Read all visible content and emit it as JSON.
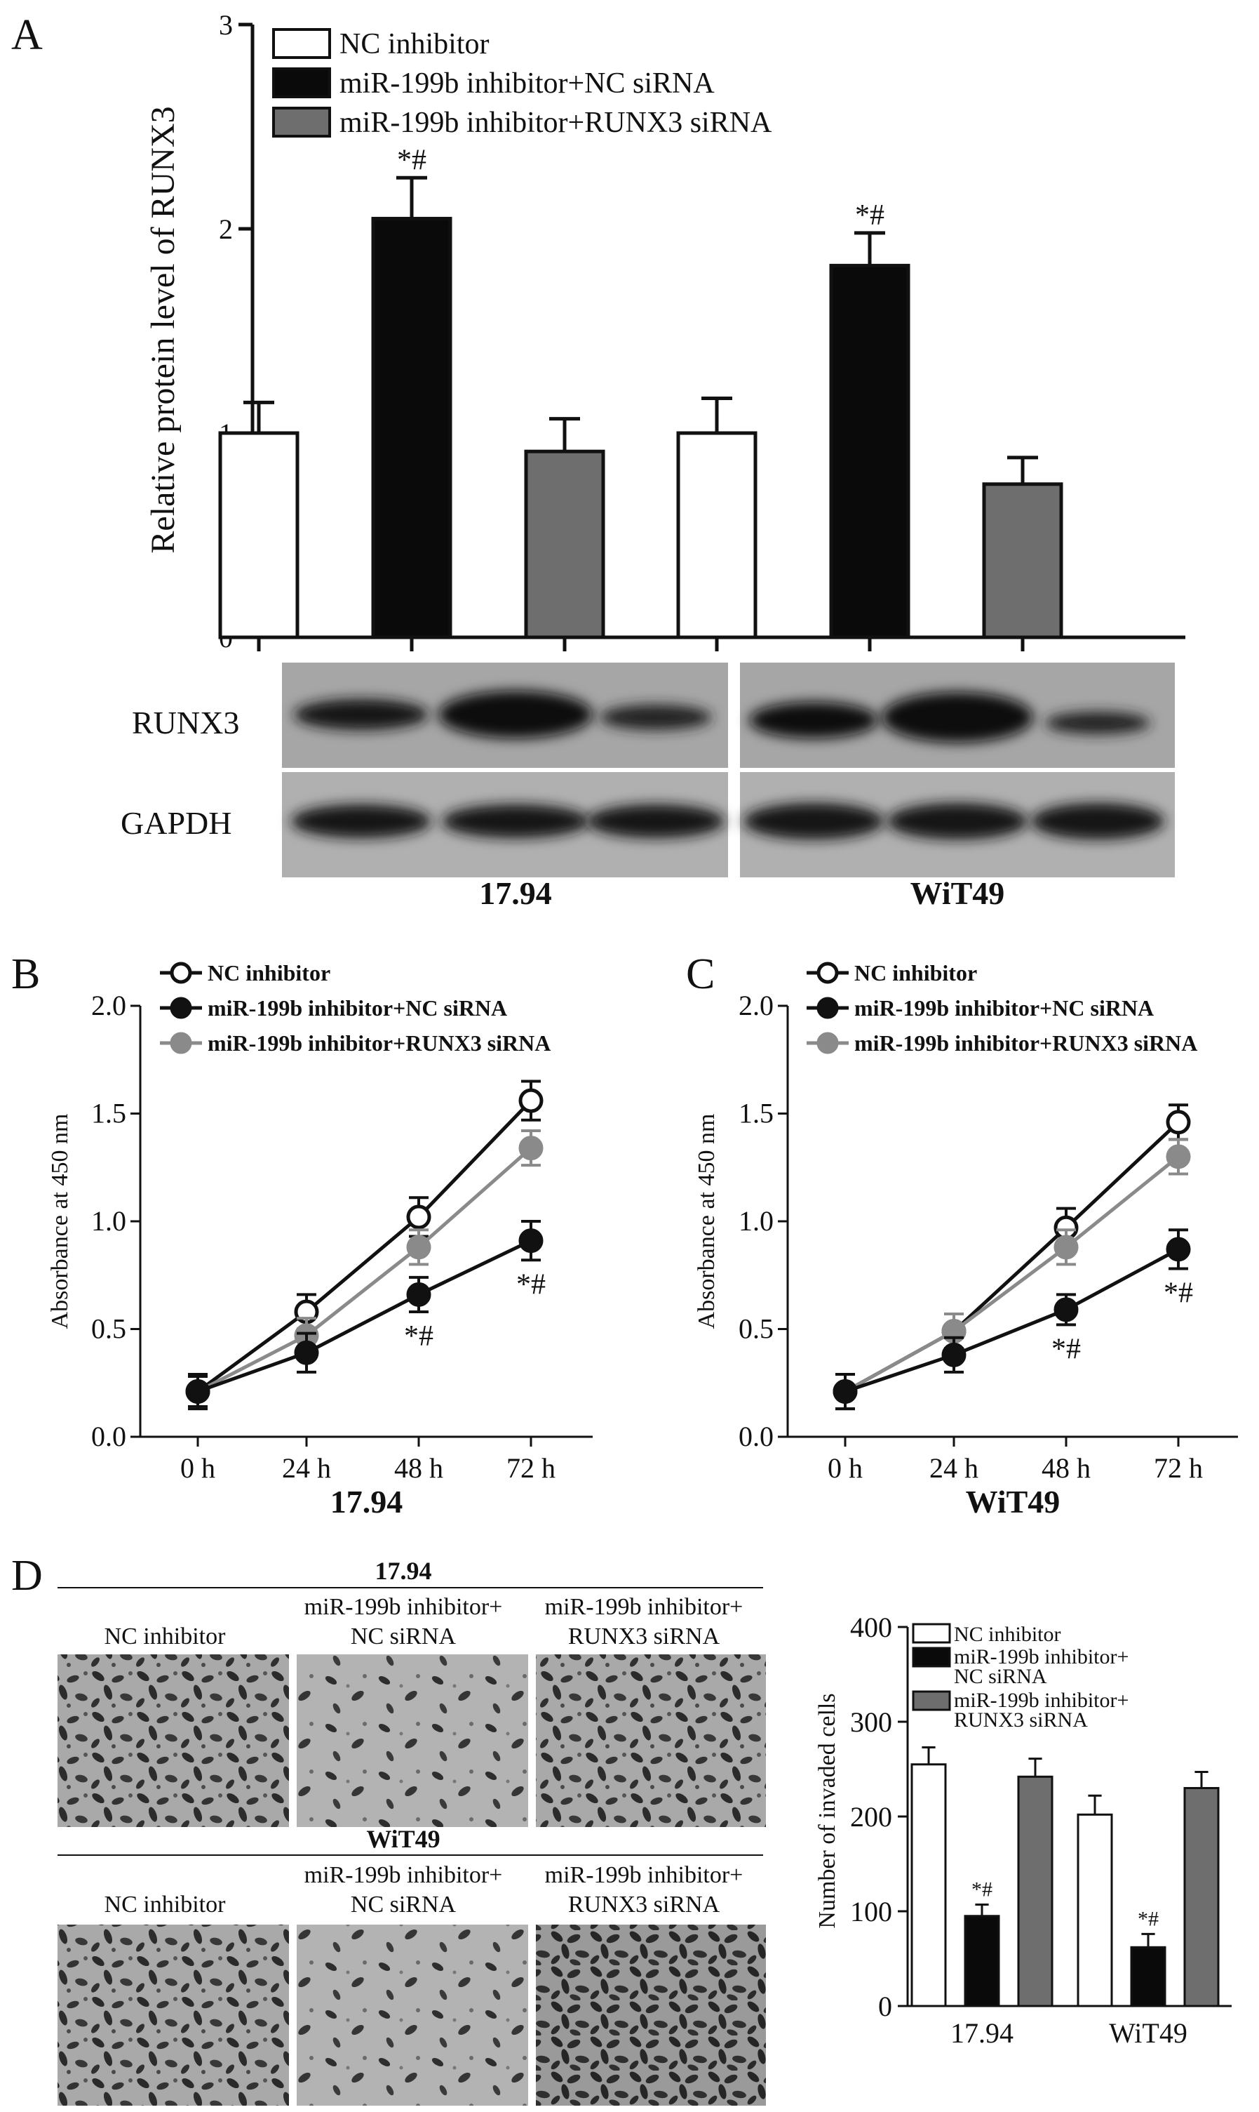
{
  "panels": {
    "a": "A",
    "b": "B",
    "c": "C",
    "d": "D"
  },
  "legend": {
    "nc": "NC inhibitor",
    "mir_nc": "miR-199b inhibitor+NC siRNA",
    "mir_runx3": "miR-199b inhibitor+RUNX3 siRNA",
    "mir_line1": "miR-199b inhibitor+",
    "nc_sirna": "NC siRNA",
    "runx3_sirna": "RUNX3 siRNA"
  },
  "colors": {
    "nc": "#ffffff",
    "mir_nc": "#0a0a0a",
    "mir_runx3": "#6e6e6e",
    "line_runx3": "#8a8a8a"
  },
  "cell_lines": [
    "17.94",
    "WiT49"
  ],
  "blot": {
    "row1": "RUNX3",
    "row2": "GAPDH"
  },
  "sig_mark": "*#",
  "chart_data": [
    {
      "panel": "A",
      "type": "bar",
      "ylabel": "Relative protein level of RUNX3",
      "ylim": [
        0,
        3
      ],
      "yticks": [
        "0",
        "1",
        "2",
        "3"
      ],
      "categories": [
        "17.94",
        "WiT49"
      ],
      "series": [
        {
          "name": "NC inhibitor",
          "values": [
            1.0,
            1.0
          ],
          "errors": [
            0.15,
            0.17
          ]
        },
        {
          "name": "miR-199b inhibitor+NC siRNA",
          "values": [
            2.05,
            1.82
          ],
          "errors": [
            0.2,
            0.16
          ]
        },
        {
          "name": "miR-199b inhibitor+RUNX3 siRNA",
          "values": [
            0.91,
            0.75
          ],
          "errors": [
            0.16,
            0.13
          ]
        }
      ],
      "annotations": [
        "*#",
        "*#"
      ]
    },
    {
      "panel": "B",
      "type": "line",
      "xlabel": "17.94",
      "ylabel": "Absorbance at 450 nm",
      "x": [
        "0 h",
        "24 h",
        "48 h",
        "72 h"
      ],
      "ylim": [
        0,
        2
      ],
      "yticks": [
        "0.0",
        "0.5",
        "1.0",
        "1.5",
        "2.0"
      ],
      "series": [
        {
          "name": "NC inhibitor",
          "values": [
            0.21,
            0.58,
            1.02,
            1.56
          ],
          "errors": [
            0.07,
            0.08,
            0.09,
            0.09
          ]
        },
        {
          "name": "miR-199b inhibitor+NC siRNA",
          "values": [
            0.21,
            0.39,
            0.66,
            0.91
          ],
          "errors": [
            0.08,
            0.09,
            0.08,
            0.09
          ]
        },
        {
          "name": "miR-199b inhibitor+RUNX3 siRNA",
          "values": [
            0.21,
            0.47,
            0.88,
            1.34
          ],
          "errors": [
            0.08,
            0.08,
            0.08,
            0.08
          ]
        }
      ],
      "annotations": [
        "*#",
        "*#"
      ]
    },
    {
      "panel": "C",
      "type": "line",
      "xlabel": "WiT49",
      "ylabel": "Absorbance at 450 nm",
      "x": [
        "0 h",
        "24 h",
        "48 h",
        "72 h"
      ],
      "ylim": [
        0,
        2
      ],
      "yticks": [
        "0.0",
        "0.5",
        "1.0",
        "1.5",
        "2.0"
      ],
      "series": [
        {
          "name": "NC inhibitor",
          "values": [
            0.21,
            0.49,
            0.97,
            1.46
          ],
          "errors": [
            0.08,
            0.08,
            0.09,
            0.08
          ]
        },
        {
          "name": "miR-199b inhibitor+NC siRNA",
          "values": [
            0.21,
            0.38,
            0.59,
            0.87
          ],
          "errors": [
            0.08,
            0.08,
            0.07,
            0.09
          ]
        },
        {
          "name": "miR-199b inhibitor+RUNX3 siRNA",
          "values": [
            0.21,
            0.49,
            0.88,
            1.3
          ],
          "errors": [
            0.08,
            0.08,
            0.08,
            0.08
          ]
        }
      ],
      "annotations": [
        "*#",
        "*#"
      ]
    },
    {
      "panel": "D",
      "type": "bar",
      "ylabel": "Number of invaded cells",
      "ylim": [
        0,
        400
      ],
      "yticks": [
        "0",
        "100",
        "200",
        "300",
        "400"
      ],
      "categories": [
        "17.94",
        "WiT49"
      ],
      "series": [
        {
          "name": "NC inhibitor",
          "values": [
            255,
            202
          ],
          "errors": [
            18,
            20
          ]
        },
        {
          "name": "miR-199b inhibitor+NC siRNA",
          "values": [
            95,
            62
          ],
          "errors": [
            12,
            14
          ]
        },
        {
          "name": "miR-199b inhibitor+RUNX3 siRNA",
          "values": [
            242,
            230
          ],
          "errors": [
            19,
            17
          ]
        }
      ],
      "annotations": [
        "*#",
        "*#"
      ]
    }
  ]
}
